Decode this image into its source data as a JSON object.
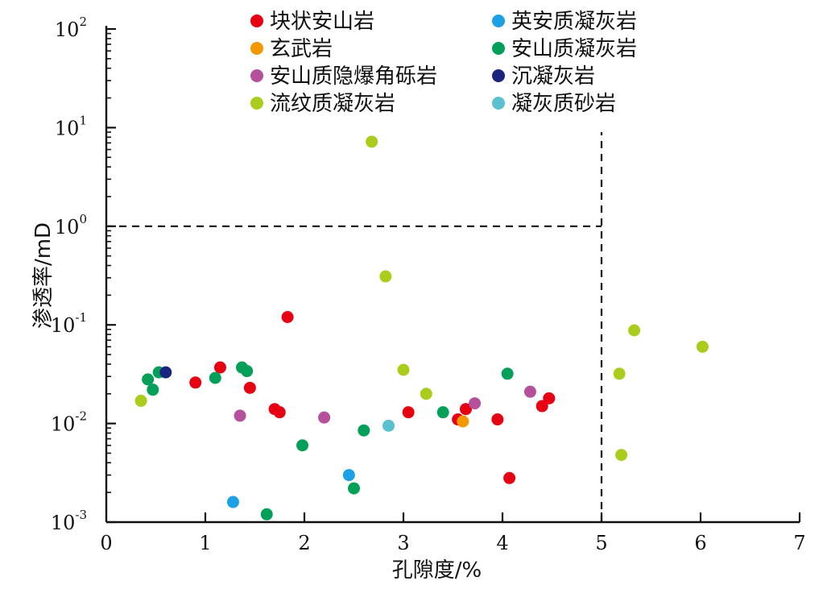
{
  "chart_data": {
    "type": "scatter",
    "xlabel": "孔隙度/%",
    "ylabel": "渗透率/mD",
    "x_range": [
      0,
      7
    ],
    "y_range": [
      0.001,
      100
    ],
    "y_scale": "log",
    "x_ticks": [
      "0",
      "1",
      "2",
      "3",
      "4",
      "5",
      "6",
      "7"
    ],
    "y_ticks": [
      {
        "base": "10",
        "exp": "2",
        "value": 100
      },
      {
        "base": "10",
        "exp": "1",
        "value": 10
      },
      {
        "base": "10",
        "exp": "0",
        "value": 1
      },
      {
        "base": "10",
        "exp": "-1",
        "value": 0.1
      },
      {
        "base": "10",
        "exp": "-2",
        "value": 0.01
      },
      {
        "base": "10",
        "exp": "-3",
        "value": 0.001
      }
    ],
    "grid": false,
    "legend_position": "top",
    "reference_lines": [
      {
        "orientation": "horizontal",
        "y": 1,
        "x_from": 0,
        "x_to": 5,
        "style": "dashed"
      },
      {
        "orientation": "vertical",
        "x": 5,
        "y_from": 0.001,
        "y_to": 9,
        "style": "dashed"
      }
    ],
    "series": [
      {
        "name": "块状安山岩",
        "color": "#e60012",
        "points": [
          [
            0.9,
            0.026
          ],
          [
            1.15,
            0.037
          ],
          [
            1.45,
            0.023
          ],
          [
            1.7,
            0.014
          ],
          [
            1.75,
            0.013
          ],
          [
            1.83,
            0.12
          ],
          [
            3.05,
            0.013
          ],
          [
            3.55,
            0.011
          ],
          [
            3.63,
            0.014
          ],
          [
            3.95,
            0.011
          ],
          [
            4.07,
            0.0028
          ],
          [
            4.4,
            0.015
          ],
          [
            4.47,
            0.018
          ]
        ]
      },
      {
        "name": "玄武岩",
        "color": "#f39800",
        "points": [
          [
            3.6,
            0.0105
          ]
        ]
      },
      {
        "name": "安山质隐爆角砾岩",
        "color": "#b5509a",
        "points": [
          [
            1.35,
            0.012
          ],
          [
            2.2,
            0.0115
          ],
          [
            3.72,
            0.016
          ],
          [
            4.28,
            0.021
          ]
        ]
      },
      {
        "name": "流纹质凝灰岩",
        "color": "#aacd1d",
        "points": [
          [
            0.35,
            0.017
          ],
          [
            2.68,
            7.2
          ],
          [
            2.82,
            0.31
          ],
          [
            3.0,
            0.035
          ],
          [
            3.23,
            0.02
          ],
          [
            5.18,
            0.032
          ],
          [
            5.2,
            0.0048
          ],
          [
            5.33,
            0.088
          ],
          [
            6.02,
            0.06
          ]
        ]
      },
      {
        "name": "英安质凝灰岩",
        "color": "#1da1e4",
        "points": [
          [
            1.28,
            0.0016
          ],
          [
            2.45,
            0.003
          ]
        ]
      },
      {
        "name": "安山质凝灰岩",
        "color": "#04a05a",
        "points": [
          [
            0.42,
            0.028
          ],
          [
            0.47,
            0.022
          ],
          [
            0.53,
            0.033
          ],
          [
            1.1,
            0.029
          ],
          [
            1.37,
            0.037
          ],
          [
            1.42,
            0.034
          ],
          [
            1.62,
            0.0012
          ],
          [
            1.98,
            0.006
          ],
          [
            2.5,
            0.0022
          ],
          [
            2.6,
            0.0085
          ],
          [
            3.4,
            0.013
          ],
          [
            4.05,
            0.032
          ]
        ]
      },
      {
        "name": "沉凝灰岩",
        "color": "#1a237e",
        "points": [
          [
            0.6,
            0.033
          ]
        ]
      },
      {
        "name": "凝灰质砂岩",
        "color": "#5bc0cf",
        "points": [
          [
            2.85,
            0.0095
          ]
        ]
      }
    ]
  }
}
